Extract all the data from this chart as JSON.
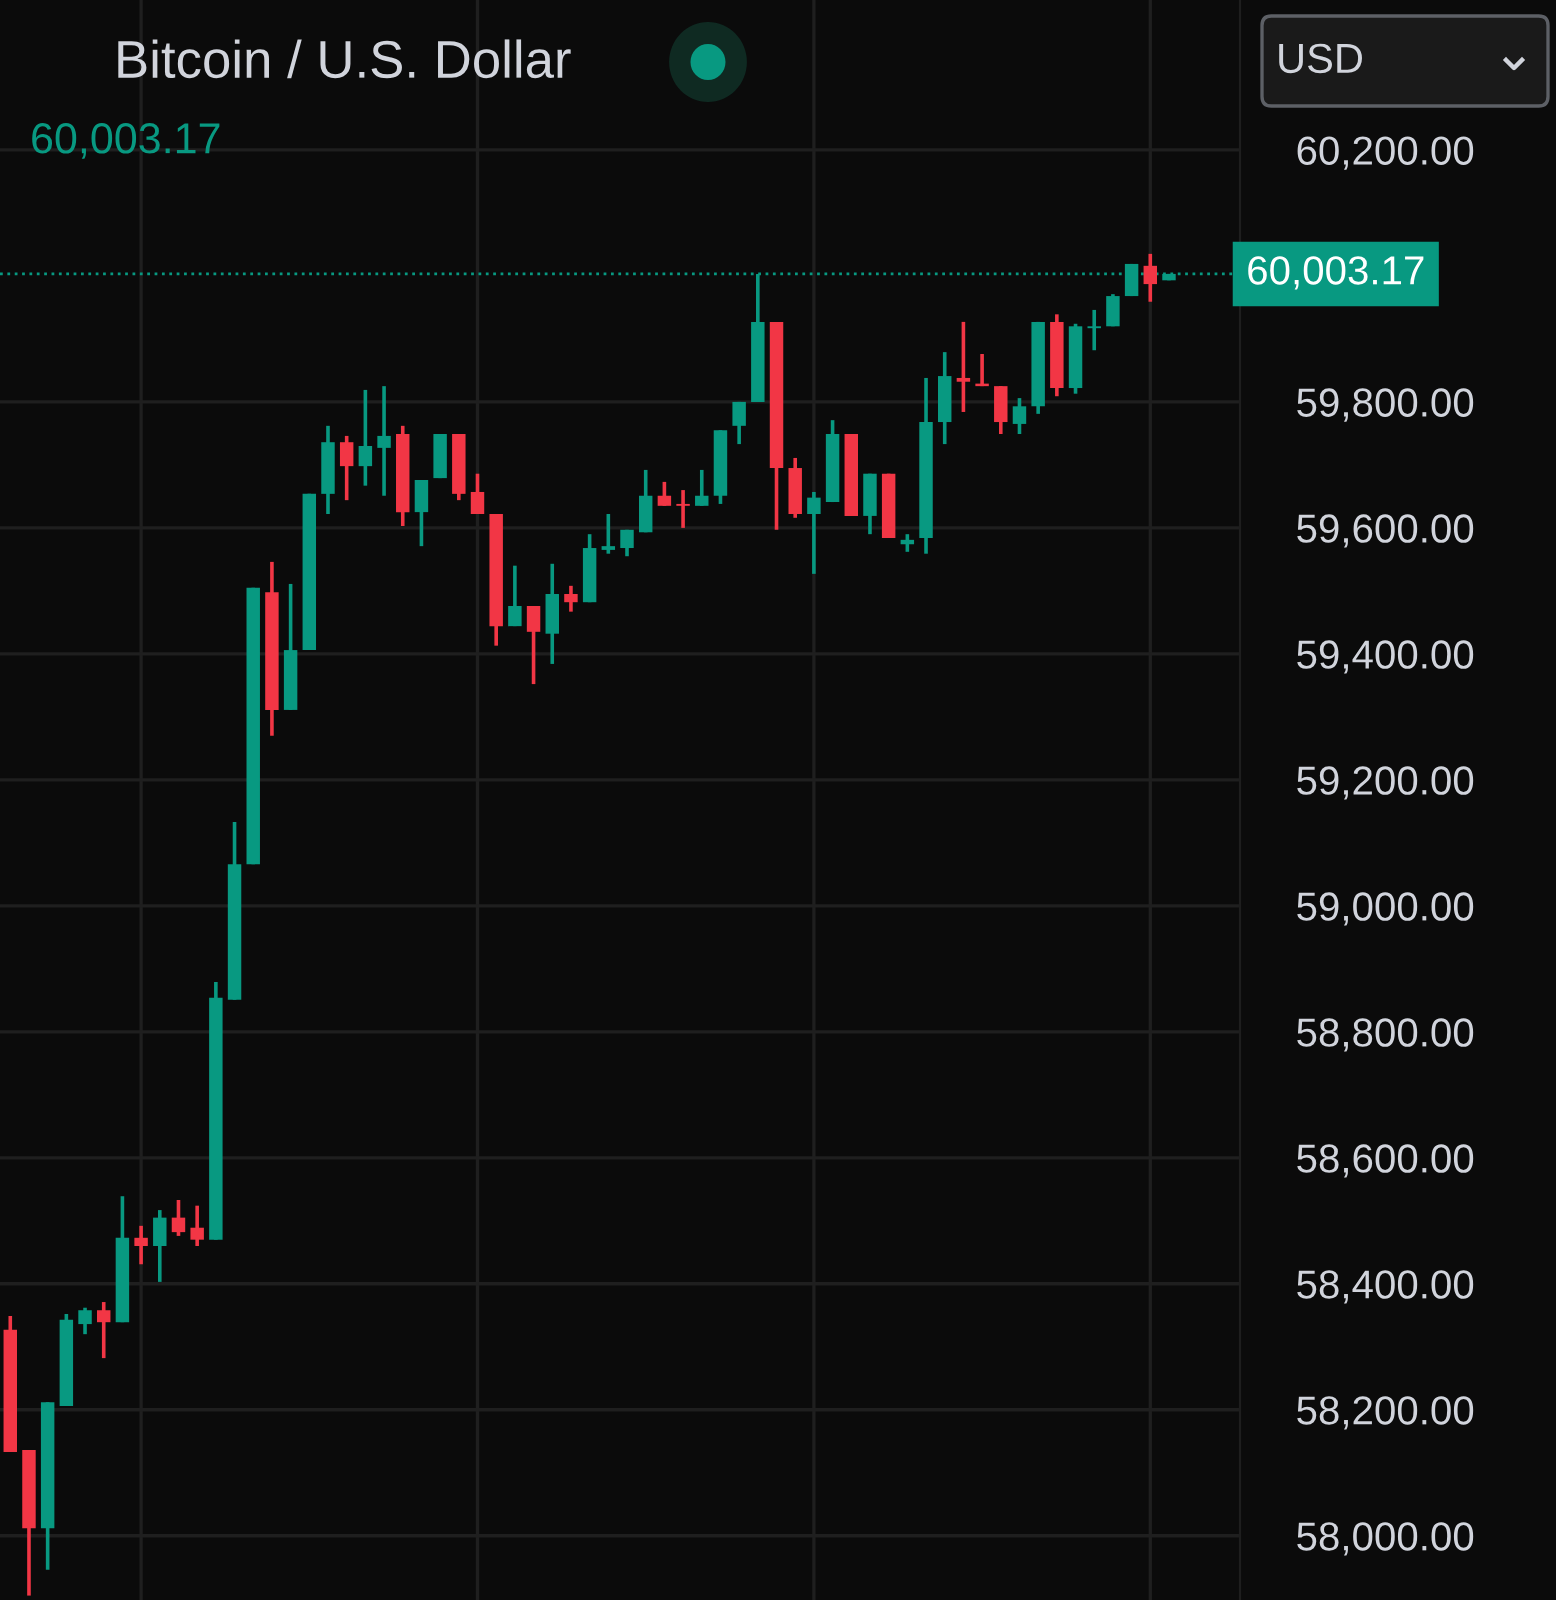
{
  "chart_data": {
    "type": "candlestick",
    "title": "Bitcoin / U.S. Dollar",
    "subtitle": "60,003.17",
    "annotations": [
      "USD"
    ],
    "categories": [
      null,
      null,
      null,
      null,
      null,
      null,
      null,
      null,
      null,
      null,
      null,
      null,
      null,
      null,
      null,
      null,
      null,
      null,
      null,
      null,
      null,
      null,
      null,
      null,
      null,
      null,
      null,
      null,
      null,
      null,
      null,
      null,
      null,
      null,
      null,
      null,
      null,
      null,
      null,
      null,
      null,
      null,
      null,
      null,
      null,
      null,
      null,
      null,
      null,
      null,
      null,
      null,
      null,
      null,
      null,
      null,
      null,
      null,
      null,
      null,
      null,
      null,
      null
    ],
    "ohlc": [
      [
        58327,
        58349,
        58133,
        58133
      ],
      [
        58136,
        58136,
        57905,
        58012
      ],
      [
        58012,
        58212,
        57946,
        58212
      ],
      [
        58206,
        58352,
        58206,
        58343
      ],
      [
        58336,
        58362,
        58320,
        58358
      ],
      [
        58358,
        58371,
        58282,
        58339
      ],
      [
        58339,
        58539,
        58339,
        58473
      ],
      [
        58473,
        58492,
        58431,
        58460
      ],
      [
        58460,
        58517,
        58403,
        58505
      ],
      [
        58505,
        58533,
        58476,
        58482
      ],
      [
        58489,
        58524,
        58460,
        58470
      ],
      [
        58470,
        58879,
        58470,
        58854
      ],
      [
        58851,
        59133,
        58851,
        59066
      ],
      [
        59066,
        59505,
        59066,
        59505
      ],
      [
        59498,
        59546,
        59270,
        59311
      ],
      [
        59311,
        59511,
        59311,
        59406
      ],
      [
        59406,
        59654,
        59406,
        59654
      ],
      [
        59654,
        59762,
        59622,
        59736
      ],
      [
        59736,
        59746,
        59644,
        59698
      ],
      [
        59698,
        59819,
        59667,
        59730
      ],
      [
        59727,
        59825,
        59651,
        59746
      ],
      [
        59749,
        59762,
        59603,
        59625
      ],
      [
        59625,
        59676,
        59571,
        59676
      ],
      [
        59679,
        59749,
        59679,
        59749
      ],
      [
        59749,
        59749,
        59644,
        59654
      ],
      [
        59657,
        59686,
        59622,
        59622
      ],
      [
        59622,
        59622,
        59413,
        59444
      ],
      [
        59444,
        59540,
        59444,
        59476
      ],
      [
        59476,
        59476,
        59352,
        59435
      ],
      [
        59432,
        59543,
        59384,
        59495
      ],
      [
        59495,
        59508,
        59467,
        59482
      ],
      [
        59482,
        59590,
        59482,
        59568
      ],
      [
        59565,
        59622,
        59559,
        59571
      ],
      [
        59568,
        59597,
        59555,
        59597
      ],
      [
        59593,
        59692,
        59593,
        59651
      ],
      [
        59651,
        59673,
        59635,
        59635
      ],
      [
        59638,
        59660,
        59600,
        59635
      ],
      [
        59635,
        59692,
        59635,
        59651
      ],
      [
        59651,
        59755,
        59638,
        59755
      ],
      [
        59762,
        59800,
        59733,
        59800
      ],
      [
        59800,
        60003,
        59800,
        59927
      ],
      [
        59927,
        59927,
        59597,
        59695
      ],
      [
        59695,
        59711,
        59616,
        59622
      ],
      [
        59622,
        59657,
        59527,
        59648
      ],
      [
        59641,
        59771,
        59641,
        59749
      ],
      [
        59749,
        59749,
        59619,
        59619
      ],
      [
        59619,
        59686,
        59590,
        59686
      ],
      [
        59686,
        59686,
        59584,
        59584
      ],
      [
        59574,
        59590,
        59562,
        59581
      ],
      [
        59584,
        59838,
        59559,
        59768
      ],
      [
        59768,
        59879,
        59733,
        59841
      ],
      [
        59838,
        59927,
        59784,
        59832
      ],
      [
        59829,
        59876,
        59825,
        59825
      ],
      [
        59825,
        59825,
        59749,
        59768
      ],
      [
        59765,
        59806,
        59749,
        59793
      ],
      [
        59793,
        59927,
        59781,
        59927
      ],
      [
        59927,
        59939,
        59809,
        59822
      ],
      [
        59822,
        59924,
        59813,
        59920
      ],
      [
        59917,
        59946,
        59882,
        59920
      ],
      [
        59920,
        59971,
        59920,
        59968
      ],
      [
        59968,
        60019,
        59968,
        60019
      ],
      [
        60016,
        60035,
        59959,
        59987
      ],
      [
        59993,
        60003.17,
        59993,
        60003.17
      ]
    ],
    "colors": [
      "#f23645",
      "#f23645",
      "#089981",
      "#089981",
      "#089981",
      "#f23645",
      "#089981",
      "#f23645",
      "#089981",
      "#f23645",
      "#f23645",
      "#089981",
      "#089981",
      "#089981",
      "#f23645",
      "#089981",
      "#089981",
      "#089981",
      "#f23645",
      "#089981",
      "#089981",
      "#f23645",
      "#089981",
      "#089981",
      "#f23645",
      "#f23645",
      "#f23645",
      "#089981",
      "#f23645",
      "#089981",
      "#f23645",
      "#089981",
      "#089981",
      "#089981",
      "#089981",
      "#f23645",
      "#f23645",
      "#089981",
      "#089981",
      "#089981",
      "#089981",
      "#f23645",
      "#f23645",
      "#089981",
      "#089981",
      "#f23645",
      "#089981",
      "#f23645",
      "#089981",
      "#089981",
      "#089981",
      "#f23645",
      "#f23645",
      "#f23645",
      "#089981",
      "#089981",
      "#f23645",
      "#089981",
      "#089981",
      "#089981",
      "#089981",
      "#f23645",
      "#089981"
    ],
    "ylim": [
      57898,
      60438
    ],
    "yticks": [
      {
        "value": 58000,
        "label": "58,000.00"
      },
      {
        "value": 58200,
        "label": "58,200.00"
      },
      {
        "value": 58400,
        "label": "58,400.00"
      },
      {
        "value": 58600,
        "label": "58,600.00"
      },
      {
        "value": 58800,
        "label": "58,800.00"
      },
      {
        "value": 59000,
        "label": "59,000.00"
      },
      {
        "value": 59200,
        "label": "59,200.00"
      },
      {
        "value": 59400,
        "label": "59,400.00"
      },
      {
        "value": 59600,
        "label": "59,600.00"
      },
      {
        "value": 59800,
        "label": "59,800.00"
      },
      {
        "value": 60200,
        "label": "60,200.00"
      }
    ],
    "ref_lines": [
      {
        "axis": "y",
        "value": 60003.17,
        "label": "60,003.17",
        "color": "#089981",
        "line_style": "dotted"
      }
    ],
    "grid": true,
    "tick_labels": "y"
  }
}
